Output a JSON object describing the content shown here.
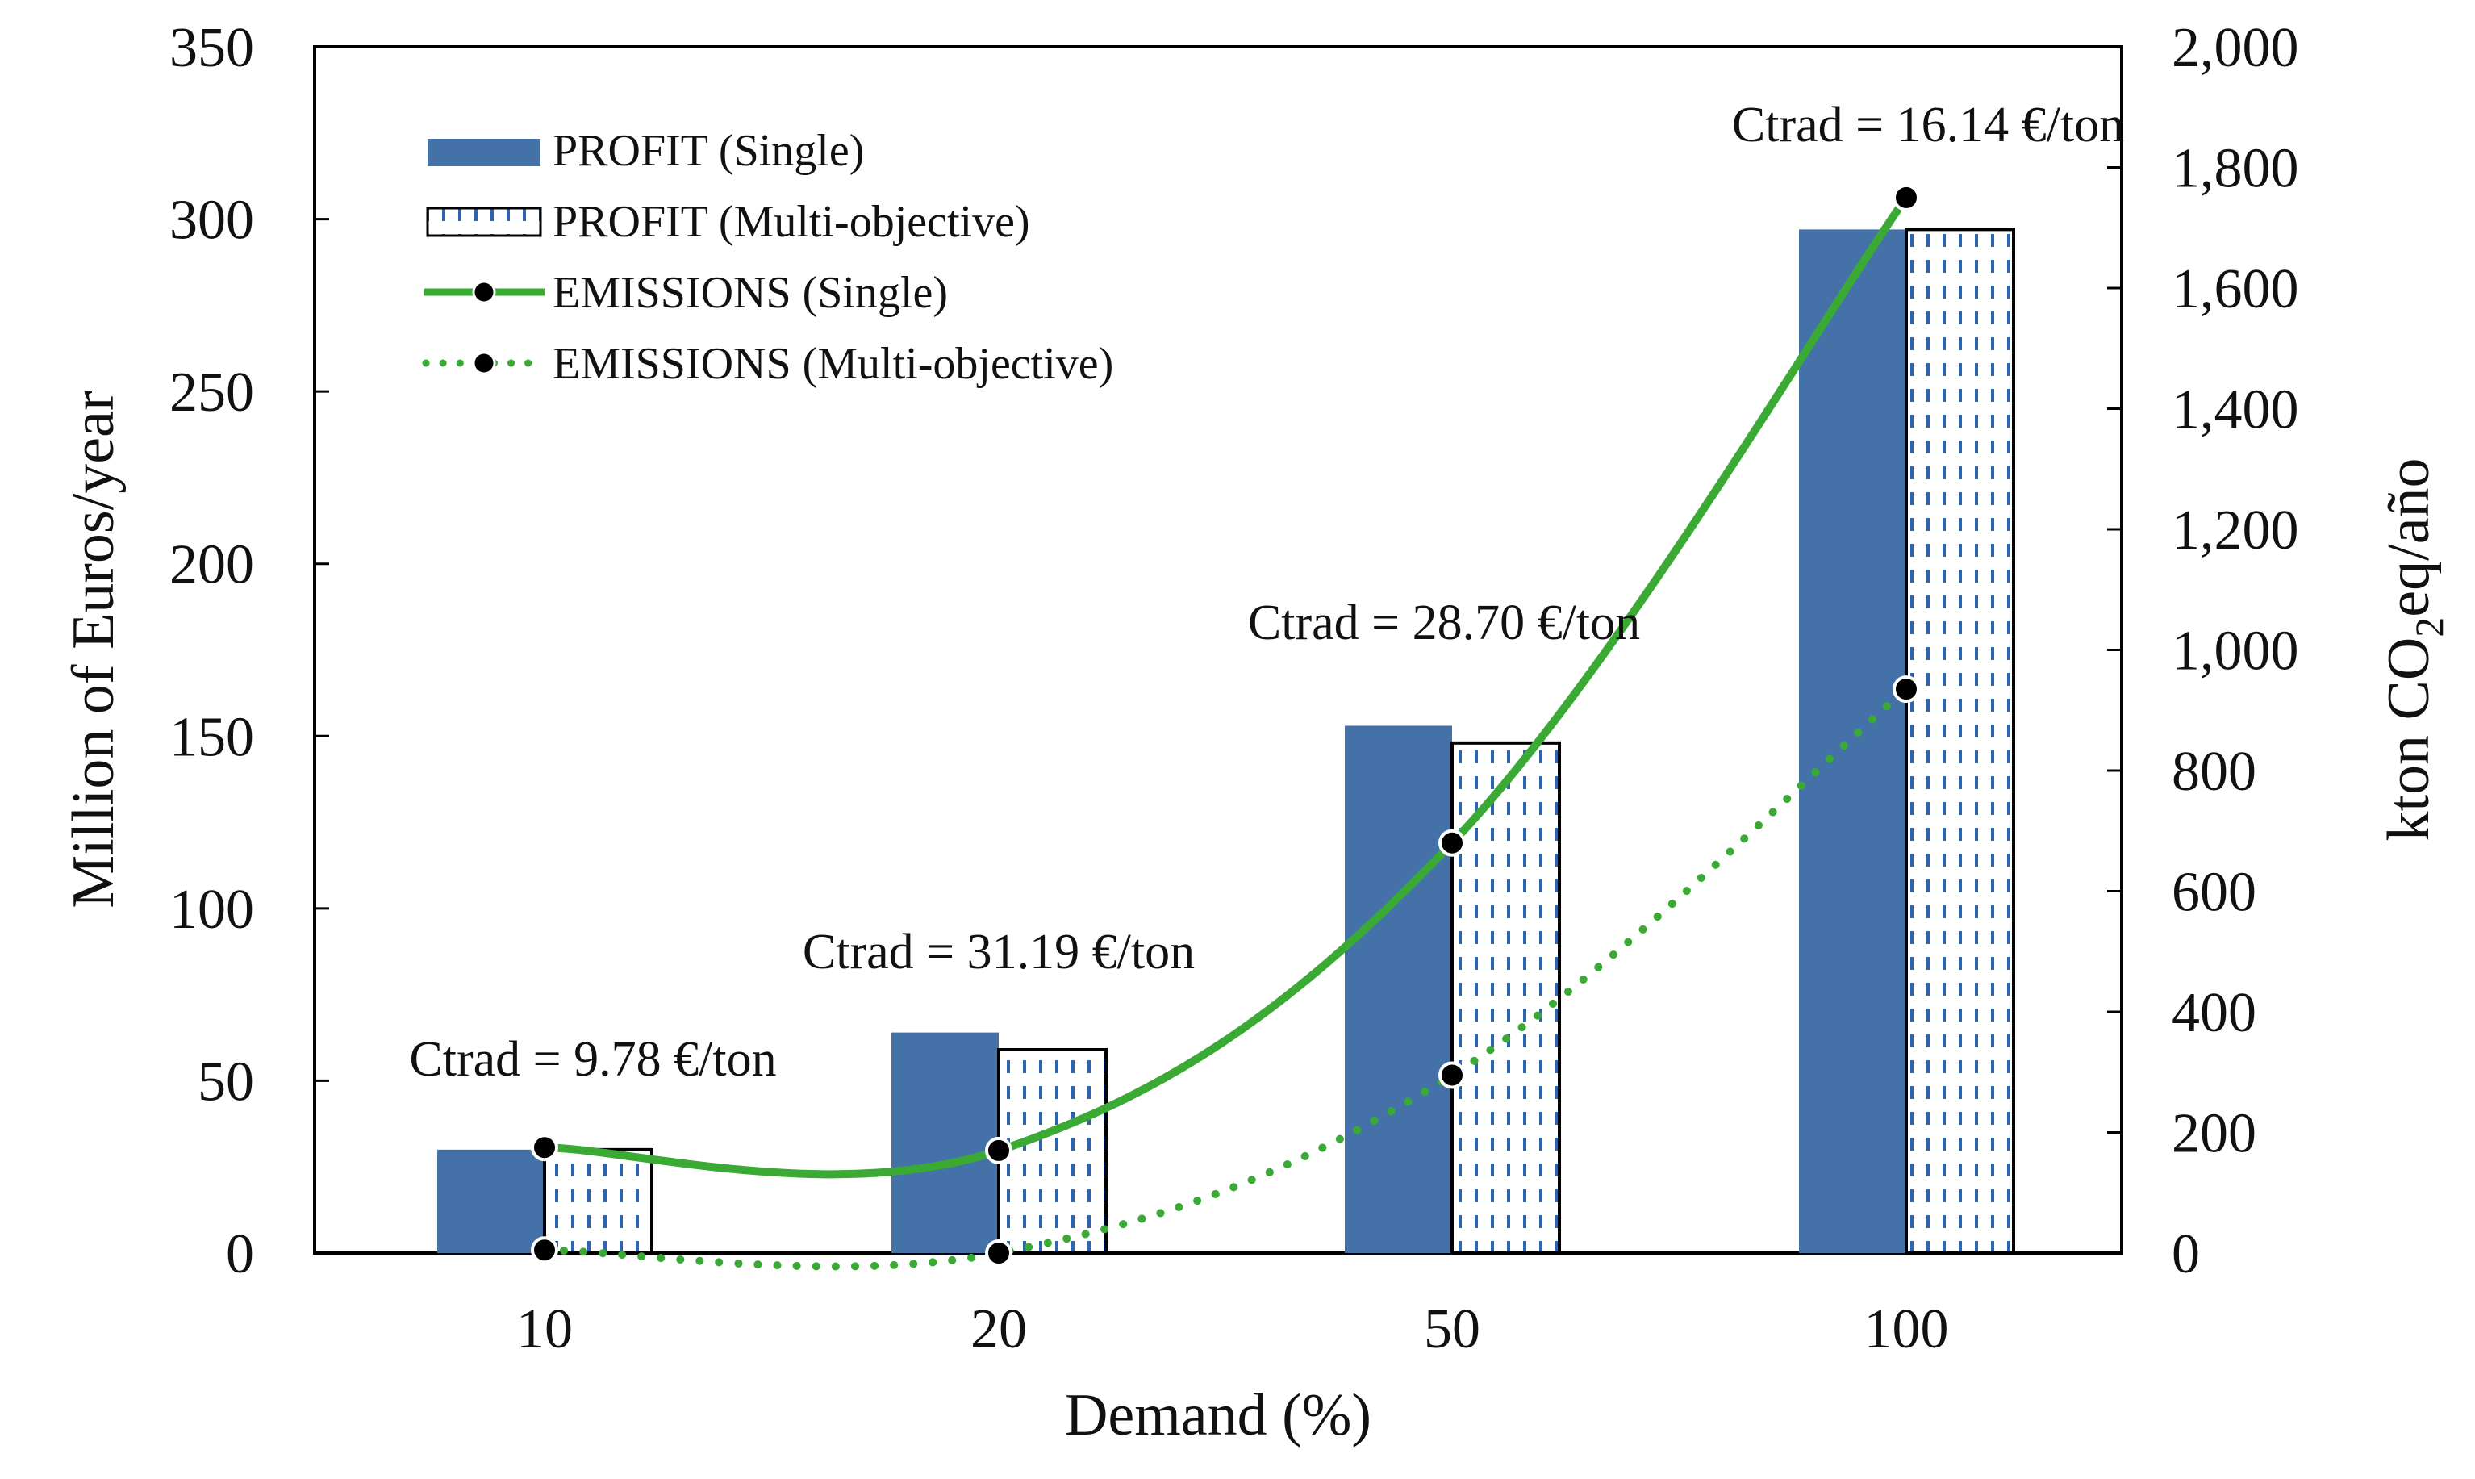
{
  "colors": {
    "profit_single": "#4472a8",
    "profit_multi_fill": "#ffffff",
    "profit_multi_pattern": "#2e64ad",
    "emissions": "#3aaa35",
    "marker": "#000000",
    "axis": "#000000"
  },
  "chart_data": {
    "type": "bar",
    "title": "",
    "xlabel": "Demand (%)",
    "ylabel": "Million of Euros/year",
    "y2label": {
      "prefix": "kton CO",
      "sub": "2",
      "suffix": "eq/año"
    },
    "categories": [
      "10",
      "20",
      "50",
      "100"
    ],
    "ylim": [
      0,
      350
    ],
    "yticks": [
      0,
      50,
      100,
      150,
      200,
      250,
      300,
      350
    ],
    "ytick_labels": [
      "0",
      "50",
      "100",
      "150",
      "200",
      "250",
      "300",
      "350"
    ],
    "y2lim": [
      0,
      2000
    ],
    "y2ticks": [
      0,
      200,
      400,
      600,
      800,
      1000,
      1200,
      1400,
      1600,
      1800,
      2000
    ],
    "y2tick_labels": [
      "0",
      "200",
      "400",
      "600",
      "800",
      "1,000",
      "1,200",
      "1,400",
      "1,600",
      "1,800",
      "2,000"
    ],
    "grid": false,
    "legend_position": "top-left",
    "series": [
      {
        "name": "PROFIT (Single)",
        "kind": "bar",
        "axis": "left",
        "style": "solid",
        "values": [
          30,
          64,
          153,
          297
        ]
      },
      {
        "name": "PROFIT (Multi-objective)",
        "kind": "bar",
        "axis": "left",
        "style": "pattern",
        "values": [
          30,
          59,
          148,
          297
        ]
      },
      {
        "name": "EMISSIONS (Single)",
        "kind": "line",
        "axis": "right",
        "style": "solid",
        "values": [
          175,
          170,
          680,
          1750
        ]
      },
      {
        "name": "EMISSIONS (Multi-objective)",
        "kind": "line",
        "axis": "right",
        "style": "dotted",
        "values": [
          5,
          0,
          295,
          935
        ]
      }
    ],
    "annotations": [
      {
        "category": "10",
        "text": "Ctrad = 9.78 €/ton"
      },
      {
        "category": "20",
        "text": "Ctrad = 31.19 €/ton"
      },
      {
        "category": "50",
        "text": "Ctrad = 28.70 €/ton"
      },
      {
        "category": "100",
        "text": "Ctrad = 16.14 €/ton"
      }
    ]
  }
}
